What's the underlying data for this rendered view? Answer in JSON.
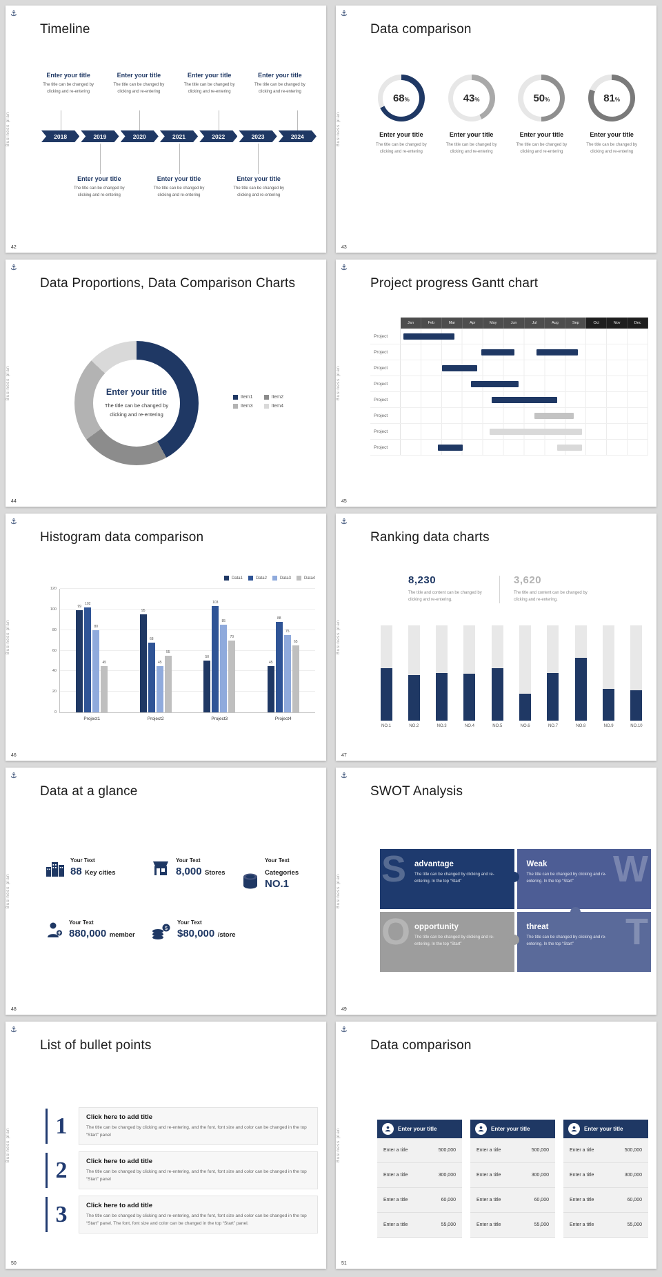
{
  "common": {
    "vertical_label": "Business plan",
    "accent_color": "#1f3864"
  },
  "slides": {
    "s42": {
      "number": "42",
      "title": "Timeline",
      "years": [
        "2018",
        "2019",
        "2020",
        "2021",
        "2022",
        "2023",
        "2024"
      ],
      "items_top": [
        {
          "title": "Enter your title",
          "caption": "The title can be changed by clicking and re-entering"
        },
        {
          "title": "Enter your title",
          "caption": "The title can be changed by clicking and re-entering"
        },
        {
          "title": "Enter your title",
          "caption": "The title can be changed by clicking and re-entering"
        },
        {
          "title": "Enter your title",
          "caption": "The title can be changed by clicking and re-entering"
        }
      ],
      "items_bottom": [
        {
          "title": "Enter your title",
          "caption": "The title can be changed by clicking and re-entering"
        },
        {
          "title": "Enter your title",
          "caption": "The title can be changed by clicking and re-entering"
        },
        {
          "title": "Enter your title",
          "caption": "The title can be changed by clicking and re-entering"
        }
      ]
    },
    "s43": {
      "number": "43",
      "title": "Data comparison",
      "items": [
        {
          "title": "Enter your title",
          "caption": "The title can be changed by clicking and re-entering"
        },
        {
          "title": "Enter your title",
          "caption": "The title can be changed by clicking and re-entering"
        },
        {
          "title": "Enter your title",
          "caption": "The title can be changed by clicking and re-entering"
        },
        {
          "title": "Enter your title",
          "caption": "The title can be changed by clicking and re-entering"
        }
      ]
    },
    "s44": {
      "number": "44",
      "title": "Data Proportions, Data Comparison Charts",
      "center_title": "Enter your title",
      "center_caption": "The title can be changed by clicking and re-entering"
    },
    "s45": {
      "number": "45",
      "title": "Project progress Gantt chart"
    },
    "s46": {
      "number": "46",
      "title": "Histogram data comparison"
    },
    "s47": {
      "number": "47",
      "title": "Ranking data charts",
      "stats": [
        {
          "value": "8,230",
          "caption": "The title and content can be changed by clicking and re-entering.",
          "color": "#1f3864"
        },
        {
          "value": "3,620",
          "caption": "The title and content can be changed by clicking and re-entering.",
          "color": "#b3b3b3"
        }
      ]
    },
    "s48": {
      "number": "48",
      "title": "Data at a glance",
      "items": [
        {
          "icon": "city-buildings-icon",
          "prefix": "Your Text",
          "number": "88",
          "label": "Key cities"
        },
        {
          "icon": "store-icon",
          "prefix": "Your Text",
          "number": "8,000",
          "label": "Stores"
        },
        {
          "icon": "database-icon",
          "prefix": "Your Text",
          "label": "Categories",
          "number": "NO.1"
        },
        {
          "icon": "member-icon",
          "prefix": "Your Text",
          "number": "880,000",
          "label": "member"
        },
        {
          "icon": "coins-icon",
          "prefix": "Your Text",
          "number": "$80,000",
          "label": "/store"
        }
      ]
    },
    "s49": {
      "number": "49",
      "title": "SWOT Analysis",
      "quadrants": [
        {
          "letter": "S",
          "title": "advantage",
          "caption": "The title can be changed by clicking and re-entering. In the top “Start”",
          "color": "#1e3a6e"
        },
        {
          "letter": "W",
          "title": "Weak",
          "caption": "The title can be changed by clicking and re-entering. In the top “Start”",
          "color": "#4d5d95"
        },
        {
          "letter": "O",
          "title": "opportunity",
          "caption": "The title can be changed by clicking and re-entering. In the top “Start”",
          "color": "#9d9d9d"
        },
        {
          "letter": "T",
          "title": "threat",
          "caption": "The title can be changed by clicking and re-entering. In the top “Start”",
          "color": "#5a6a9a"
        }
      ]
    },
    "s50": {
      "number": "50",
      "title": "List of bullet points",
      "items": [
        {
          "num": "1",
          "title": "Click here to add title",
          "caption": "The title can be changed by clicking and re-entering, and the font, font size and color can be changed in the top “Start” panel"
        },
        {
          "num": "2",
          "title": "Click here to add title",
          "caption": "The title can be changed by clicking and re-entering, and the font, font size and color can be changed in the top “Start” panel"
        },
        {
          "num": "3",
          "title": "Click here to add title",
          "caption": "The title can be changed by clicking and re-entering, and the font, font size and color can be changed in the top “Start” panel. The font, font size and color can be changed in the top “Start” panel."
        }
      ]
    },
    "s51": {
      "number": "51",
      "title": "Data comparison",
      "cards": [
        {
          "header": "Enter your title",
          "rows": [
            [
              "Enter a title",
              "500,000"
            ],
            [
              "Enter a title",
              "300,000"
            ],
            [
              "Enter a title",
              "60,000"
            ],
            [
              "Enter a title",
              "55,000"
            ]
          ]
        },
        {
          "header": "Enter your title",
          "rows": [
            [
              "Enter a title",
              "500,000"
            ],
            [
              "Enter a title",
              "300,000"
            ],
            [
              "Enter a title",
              "60,000"
            ],
            [
              "Enter a title",
              "55,000"
            ]
          ]
        },
        {
          "header": "Enter your title",
          "rows": [
            [
              "Enter a title",
              "500,000"
            ],
            [
              "Enter a title",
              "300,000"
            ],
            [
              "Enter a title",
              "60,000"
            ],
            [
              "Enter a title",
              "55,000"
            ]
          ]
        }
      ]
    }
  },
  "chart_data": [
    {
      "id": "progress-rings",
      "slide": "43",
      "type": "pie",
      "variant": "progress-rings",
      "values": [
        68,
        43,
        50,
        81
      ],
      "unit": "%",
      "ring_colors": [
        "#1f3864",
        "#a9a9a9",
        "#8f8f8f",
        "#7a7a7a"
      ],
      "track_color": "#e7e7e7"
    },
    {
      "id": "donut",
      "slide": "44",
      "type": "pie",
      "labels": [
        "Item1",
        "Item2",
        "Item3",
        "Item4"
      ],
      "values": [
        42,
        23,
        22,
        13
      ],
      "colors": [
        "#1f3864",
        "#8c8c8c",
        "#b3b3b3",
        "#d9d9d9"
      ],
      "legend_position": "right",
      "center_title": "Enter your title"
    },
    {
      "id": "gantt",
      "slide": "45",
      "type": "table",
      "columns": [
        "Jan",
        "Feb",
        "Mar",
        "Apr",
        "May",
        "Jun",
        "Jul",
        "Aug",
        "Sep",
        "Oct",
        "Nov",
        "Dec"
      ],
      "dark_columns": [
        "Oct",
        "Nov",
        "Dec"
      ],
      "row_label": "Project",
      "palette": {
        "navy": "#1f3864",
        "gray": "#c3c3c3",
        "light": "#d9d9d9"
      },
      "rows": [
        {
          "bars": [
            {
              "start": 0.15,
              "end": 2.6,
              "color": "navy"
            }
          ]
        },
        {
          "bars": [
            {
              "start": 3.9,
              "end": 5.5,
              "color": "navy"
            },
            {
              "start": 6.6,
              "end": 8.6,
              "color": "navy"
            }
          ]
        },
        {
          "bars": [
            {
              "start": 2.0,
              "end": 3.7,
              "color": "navy"
            }
          ]
        },
        {
          "bars": [
            {
              "start": 3.4,
              "end": 5.7,
              "color": "navy"
            }
          ]
        },
        {
          "bars": [
            {
              "start": 4.4,
              "end": 7.6,
              "color": "navy"
            }
          ]
        },
        {
          "bars": [
            {
              "start": 6.5,
              "end": 8.4,
              "color": "gray"
            }
          ]
        },
        {
          "bars": [
            {
              "start": 4.3,
              "end": 8.8,
              "color": "light"
            }
          ]
        },
        {
          "bars": [
            {
              "start": 1.8,
              "end": 3.0,
              "color": "navy"
            },
            {
              "start": 7.6,
              "end": 8.8,
              "color": "light"
            }
          ]
        }
      ]
    },
    {
      "id": "histogram",
      "slide": "46",
      "type": "bar",
      "categories": [
        "Project1",
        "Project2",
        "Project3",
        "Project4"
      ],
      "series": [
        {
          "name": "Data1",
          "color": "#1f3864",
          "values": [
            99,
            95,
            50,
            45
          ]
        },
        {
          "name": "Data2",
          "color": "#2f5496",
          "values": [
            102,
            68,
            103,
            88
          ]
        },
        {
          "name": "Data3",
          "color": "#8faadc",
          "values": [
            80,
            45,
            85,
            75
          ]
        },
        {
          "name": "Data4",
          "color": "#bfbfbf",
          "values": [
            45,
            55,
            70,
            65
          ]
        }
      ],
      "ylim": [
        0,
        120
      ],
      "yticks": [
        0,
        20,
        40,
        60,
        80,
        100,
        120
      ],
      "legend_position": "top-right",
      "grid": true
    },
    {
      "id": "ranking",
      "slide": "47",
      "type": "bar",
      "categories": [
        "NO.1",
        "NO.2",
        "NO.3",
        "NO.4",
        "NO.5",
        "NO.6",
        "NO.7",
        "NO.8",
        "NO.9",
        "NO.10"
      ],
      "values": [
        55,
        48,
        50,
        49,
        55,
        28,
        50,
        66,
        33,
        32
      ],
      "ymax": 100,
      "bar_color": "#1f3864",
      "track_color": "#e8e8e8",
      "highlight_value": "8,230",
      "secondary_value": "3,620"
    }
  ]
}
